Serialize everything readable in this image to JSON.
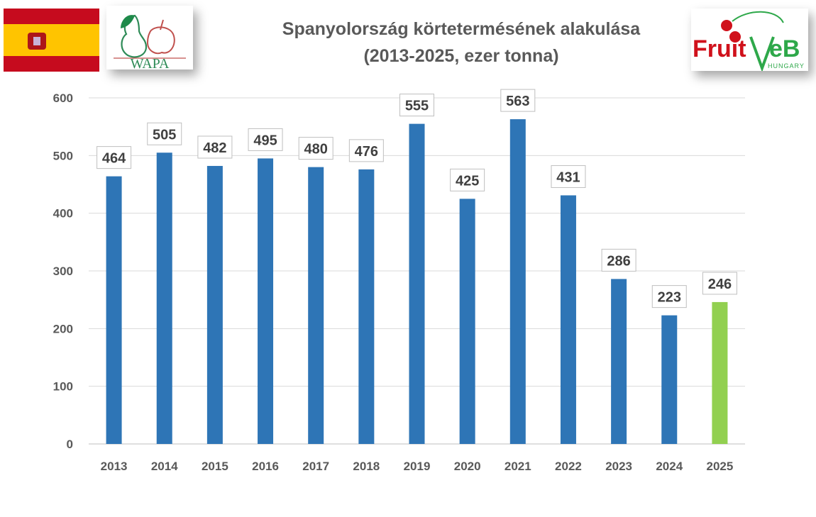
{
  "chart_data": {
    "type": "bar",
    "title": "Spanyolország körtetermésének alakulása",
    "subtitle": "(2013-2025, ezer tonna)",
    "categories": [
      "2013",
      "2014",
      "2015",
      "2016",
      "2017",
      "2018",
      "2019",
      "2020",
      "2021",
      "2022",
      "2023",
      "2024",
      "2025"
    ],
    "values": [
      464,
      505,
      482,
      495,
      480,
      476,
      555,
      425,
      563,
      431,
      286,
      223,
      246
    ],
    "ylim": [
      0,
      600
    ],
    "yticks": [
      0,
      100,
      200,
      300,
      400,
      500,
      600
    ],
    "grid": true,
    "colors": {
      "bar": "#2E75B6",
      "highlight_bar": "#92D050",
      "highlight_category": "2025"
    }
  },
  "logos": {
    "flag": "Spain flag",
    "wapa": "WAPA",
    "fruitveb": "FruitVeB",
    "fruitveb_sub": "HUNGARY"
  }
}
